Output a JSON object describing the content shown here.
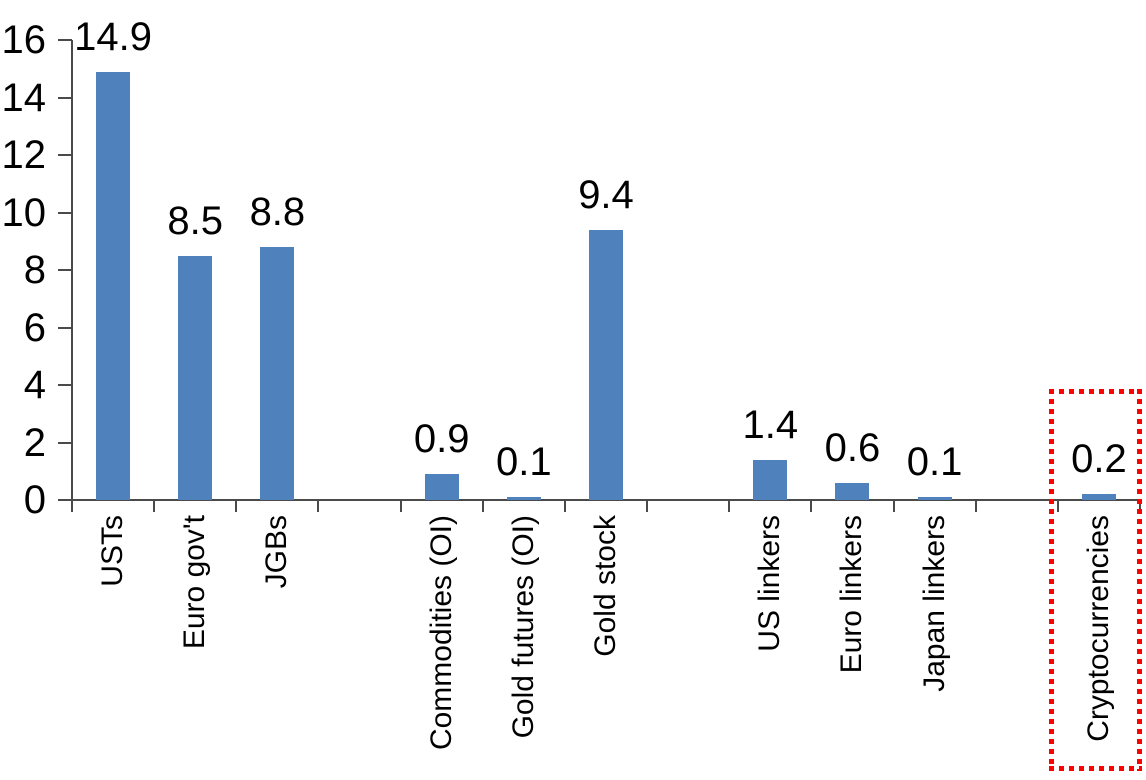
{
  "chart_data": {
    "type": "bar",
    "title": "",
    "xlabel": "",
    "ylabel": "",
    "ylim": [
      0,
      16
    ],
    "yticks": [
      0,
      2,
      4,
      6,
      8,
      10,
      12,
      14,
      16
    ],
    "grid": false,
    "legend": "none",
    "bar_color": "#4F81BD",
    "axis_color": "#4a4a4a",
    "text_color": "#000000",
    "highlight_box_color": "#FF0000",
    "slots": [
      {
        "label": "USTs",
        "value": 14.9,
        "display": "14.9",
        "highlighted": false
      },
      {
        "label": "Euro gov't",
        "value": 8.5,
        "display": "8.5",
        "highlighted": false
      },
      {
        "label": "JGBs",
        "value": 8.8,
        "display": "8.8",
        "highlighted": false
      },
      {
        "gap": true
      },
      {
        "label": "Commodities (OI)",
        "value": 0.9,
        "display": "0.9",
        "highlighted": false
      },
      {
        "label": "Gold futures (OI)",
        "value": 0.1,
        "display": "0.1",
        "highlighted": false
      },
      {
        "label": "Gold stock",
        "value": 9.4,
        "display": "9.4",
        "highlighted": false
      },
      {
        "gap": true
      },
      {
        "label": "US linkers",
        "value": 1.4,
        "display": "1.4",
        "highlighted": false
      },
      {
        "label": "Euro linkers",
        "value": 0.6,
        "display": "0.6",
        "highlighted": false
      },
      {
        "label": "Japan linkers",
        "value": 0.1,
        "display": "0.1",
        "highlighted": false
      },
      {
        "gap": true
      },
      {
        "label": "Cryptocurrencies",
        "value": 0.2,
        "display": "0.2",
        "highlighted": true
      }
    ]
  }
}
